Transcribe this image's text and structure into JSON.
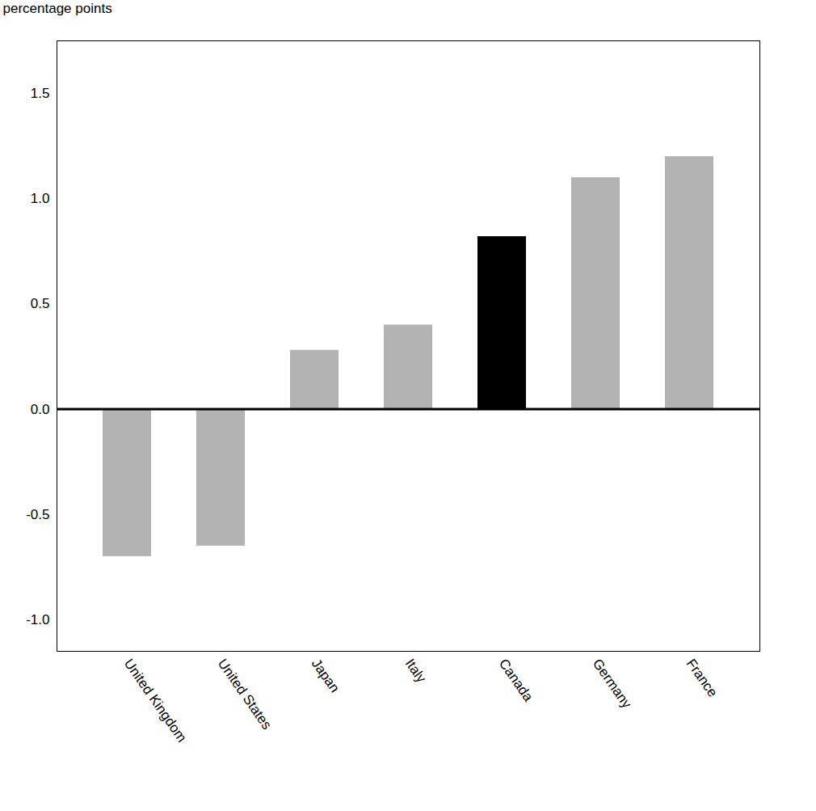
{
  "chart_data": {
    "type": "bar",
    "ylabel": "percentage points",
    "categories": [
      "United Kingdom",
      "United States",
      "Japan",
      "Italy",
      "Canada",
      "Germany",
      "France"
    ],
    "values": [
      -0.7,
      -0.65,
      0.28,
      0.4,
      0.82,
      1.1,
      1.2
    ],
    "colors": [
      "#b3b3b3",
      "#b3b3b3",
      "#b3b3b3",
      "#b3b3b3",
      "#000000",
      "#b3b3b3",
      "#b3b3b3"
    ],
    "ylim": [
      -1.15,
      1.75
    ],
    "yticks": [
      {
        "value": -1.0,
        "label": "-1.0"
      },
      -0.5,
      {
        "value": 0.0,
        "label": "0.0"
      },
      0.5,
      {
        "value": 1.0,
        "label": "1.0"
      },
      1.5
    ],
    "grid": false
  }
}
